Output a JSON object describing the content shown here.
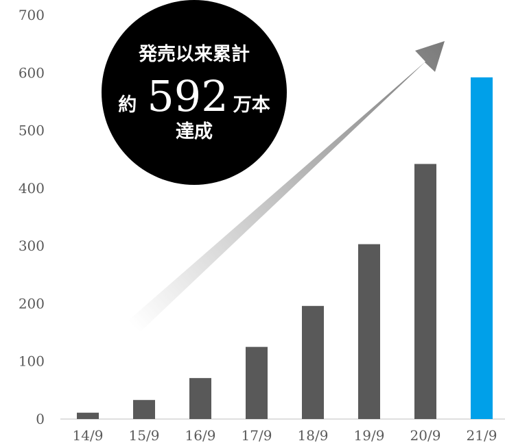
{
  "chart_data": {
    "type": "bar",
    "categories": [
      "14/9",
      "15/9",
      "16/9",
      "17/9",
      "18/9",
      "19/9",
      "20/9",
      "21/9"
    ],
    "values": [
      11,
      33,
      71,
      125,
      196,
      303,
      442,
      592
    ],
    "ylim": [
      0,
      700
    ],
    "yticks": [
      0,
      100,
      200,
      300,
      400,
      500,
      600,
      700
    ],
    "grid": false,
    "bar_color": "#595959",
    "highlight_color": "#00A0E9",
    "highlight_index": 7,
    "annotation": {
      "line1": "発売以来累計",
      "prefix": "約",
      "number": "592",
      "suffix": "万本",
      "line3": "達成"
    }
  }
}
